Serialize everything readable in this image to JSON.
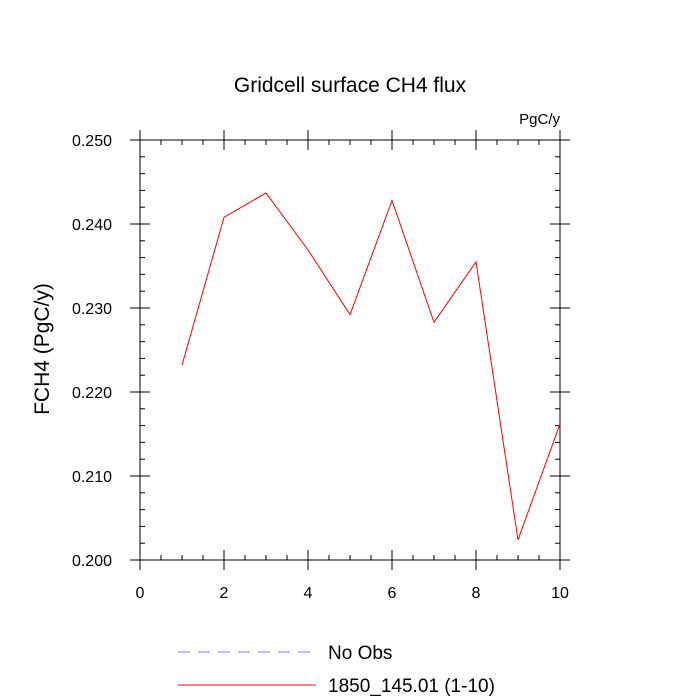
{
  "chart_data": {
    "type": "line",
    "title": "Gridcell surface CH4 flux",
    "units_label": "PgC/y",
    "ylabel": "FCH4  (PgC/y)",
    "xlabel": "",
    "xlim": [
      0,
      10
    ],
    "ylim": [
      0.2,
      0.25
    ],
    "xticks": [
      0,
      2,
      4,
      6,
      8,
      10
    ],
    "xtick_labels": [
      "0",
      "2",
      "4",
      "6",
      "8",
      "10"
    ],
    "yticks": [
      0.2,
      0.21,
      0.22,
      0.23,
      0.24,
      0.25
    ],
    "ytick_labels": [
      "0.200",
      "0.210",
      "0.220",
      "0.230",
      "0.240",
      "0.250"
    ],
    "grid": false,
    "legend_position": "bottom",
    "series": [
      {
        "name": "1850_145.01 (1-10)",
        "color": "#ff0000",
        "line_style": "solid",
        "x": [
          1,
          2,
          3,
          4,
          5,
          6,
          7,
          8,
          9,
          10
        ],
        "y": [
          0.2232,
          0.2408,
          0.2437,
          0.2369,
          0.2292,
          0.2428,
          0.2283,
          0.2355,
          0.2024,
          0.2162
        ]
      }
    ],
    "legend": [
      {
        "label": "No Obs",
        "color": "#8080ff",
        "line_style": "dashed"
      },
      {
        "label": "1850_145.01 (1-10)",
        "color": "#ff0000",
        "line_style": "solid"
      }
    ]
  }
}
